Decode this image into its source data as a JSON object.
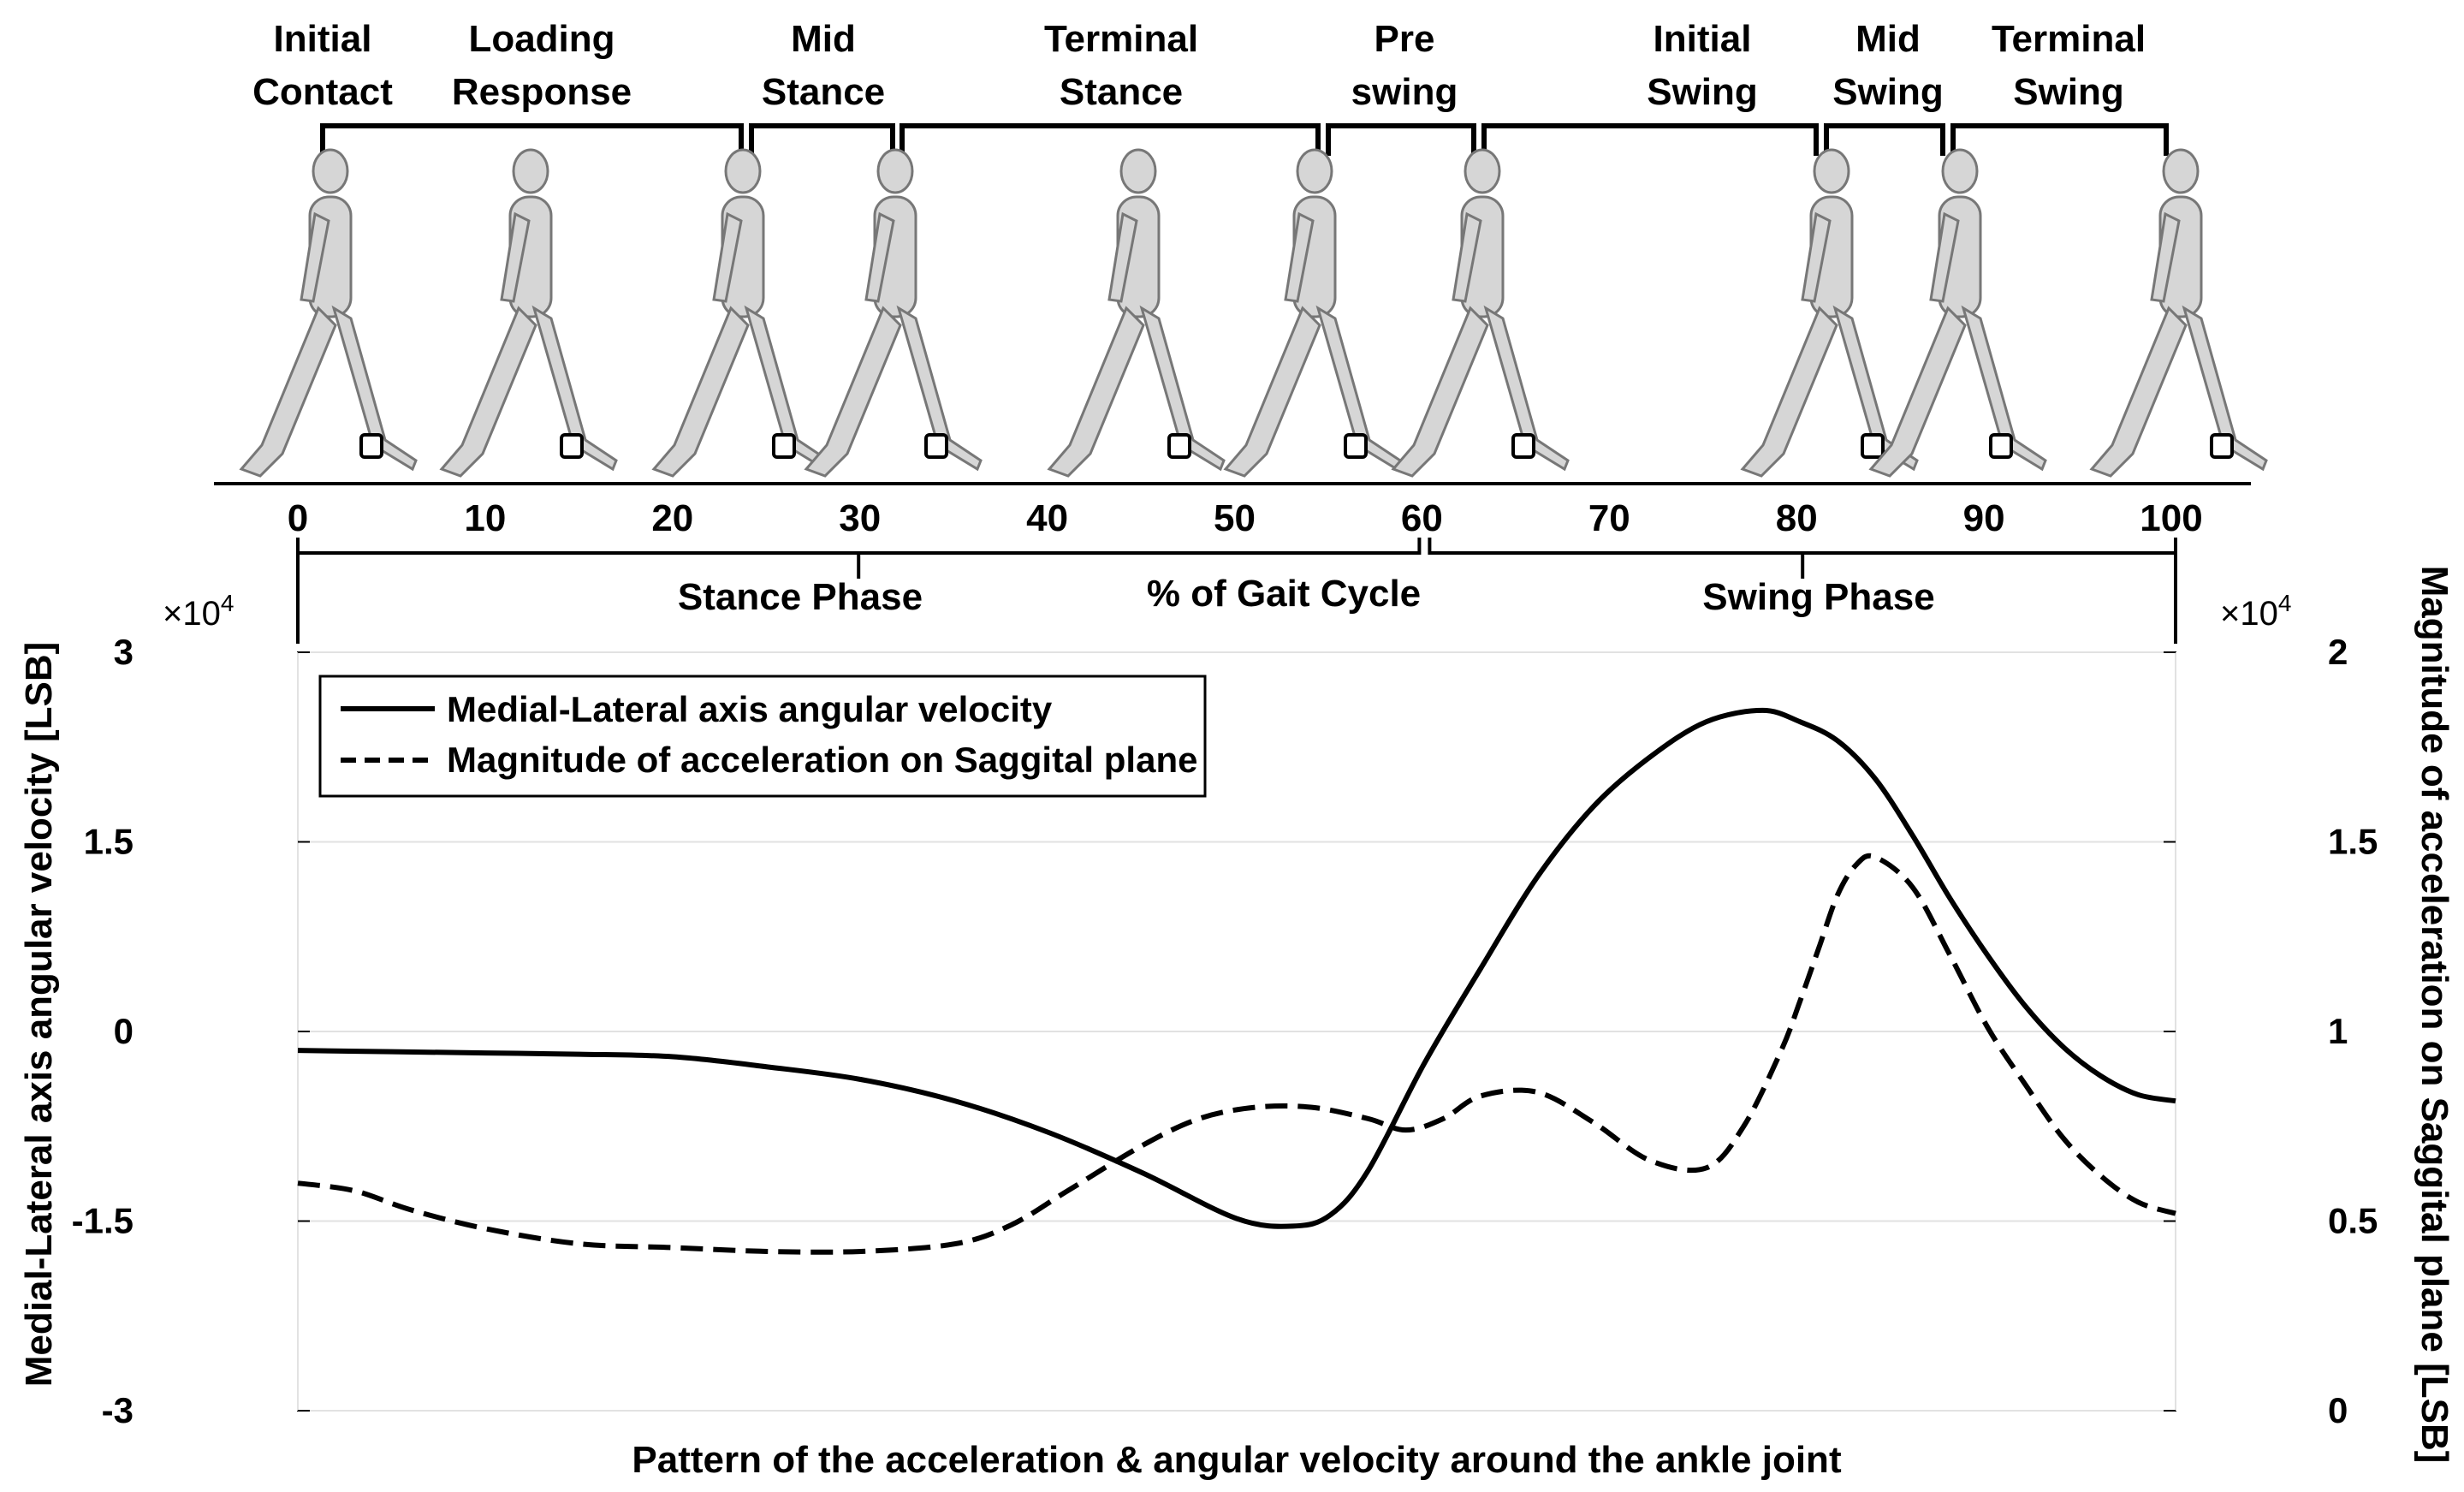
{
  "gait_phases": [
    {
      "label_lines": [
        "Initial",
        "Contact"
      ]
    },
    {
      "label_lines": [
        "Loading",
        "Response"
      ]
    },
    {
      "label_lines": [
        "Mid",
        "Stance"
      ]
    },
    {
      "label_lines": [
        "Terminal",
        "Stance"
      ]
    },
    {
      "label_lines": [
        "Pre",
        "swing"
      ]
    },
    {
      "label_lines": [
        "Initial",
        "Swing"
      ]
    },
    {
      "label_lines": [
        "Mid",
        "Swing"
      ]
    },
    {
      "label_lines": [
        "Terminal",
        "Swing"
      ]
    }
  ],
  "gait_cycle": {
    "ticks": [
      "0",
      "10",
      "20",
      "30",
      "40",
      "50",
      "60",
      "70",
      "80",
      "90",
      "100"
    ],
    "axis_label": "% of Gait Cycle",
    "stance_label": "Stance Phase",
    "swing_label": "Swing Phase",
    "stance_range": [
      0,
      60
    ],
    "swing_range": [
      60,
      100
    ]
  },
  "chart_data": {
    "type": "line",
    "title": "",
    "xlabel": "Pattern of the acceleration & angular velocity around the ankle joint",
    "xlim": [
      0,
      100
    ],
    "grid": true,
    "legend_position": "top-left",
    "left_axis": {
      "label": "Medial-Lateral axis angular velocity [LSB]",
      "ticks": [
        "-3",
        "-1.5",
        "0",
        "1.5",
        "3"
      ],
      "tick_values": [
        -3,
        -1.5,
        0,
        1.5,
        3
      ],
      "ylim": [
        -3,
        3
      ],
      "scale": "×10",
      "scale_exp": "4"
    },
    "right_axis": {
      "label": "Magnitude of acceleration on Saggital plane [LSB]",
      "ticks": [
        "0",
        "0.5",
        "1",
        "1.5",
        "2"
      ],
      "tick_values": [
        0,
        0.5,
        1,
        1.5,
        2
      ],
      "ylim": [
        0,
        2
      ],
      "scale": "×10",
      "scale_exp": "4"
    },
    "series": [
      {
        "name": "Medial-Lateral axis angular velocity",
        "axis": "left",
        "style": "solid",
        "x": [
          0,
          5,
          10,
          15,
          20,
          25,
          30,
          35,
          40,
          45,
          50,
          53,
          55,
          57,
          60,
          63,
          66,
          69,
          72,
          75,
          78,
          80,
          82,
          84,
          86,
          88,
          90,
          92,
          94,
          96,
          98,
          100
        ],
        "y": [
          -0.15,
          -0.16,
          -0.17,
          -0.18,
          -0.2,
          -0.28,
          -0.38,
          -0.55,
          -0.8,
          -1.12,
          -1.48,
          -1.54,
          -1.45,
          -1.1,
          -0.25,
          0.5,
          1.22,
          1.78,
          2.17,
          2.45,
          2.54,
          2.45,
          2.3,
          2.0,
          1.55,
          1.05,
          0.6,
          0.2,
          -0.12,
          -0.35,
          -0.5,
          -0.55
        ]
      },
      {
        "name": "Magnitude of acceleration on Saggital plane",
        "axis": "right",
        "style": "dashed",
        "x": [
          0,
          3,
          6,
          10,
          15,
          20,
          25,
          30,
          35,
          38,
          41,
          45,
          48,
          51,
          54,
          57,
          59,
          61,
          63,
          66,
          69,
          72,
          75,
          77,
          79,
          80,
          81,
          82,
          83,
          84,
          86,
          88,
          90,
          92,
          94,
          96,
          98,
          100
        ],
        "y": [
          0.6,
          0.58,
          0.53,
          0.48,
          0.44,
          0.43,
          0.42,
          0.42,
          0.44,
          0.49,
          0.58,
          0.7,
          0.77,
          0.8,
          0.8,
          0.77,
          0.74,
          0.77,
          0.83,
          0.84,
          0.76,
          0.66,
          0.64,
          0.75,
          0.95,
          1.08,
          1.22,
          1.36,
          1.44,
          1.46,
          1.38,
          1.2,
          1.01,
          0.86,
          0.72,
          0.62,
          0.55,
          0.52
        ]
      }
    ]
  }
}
